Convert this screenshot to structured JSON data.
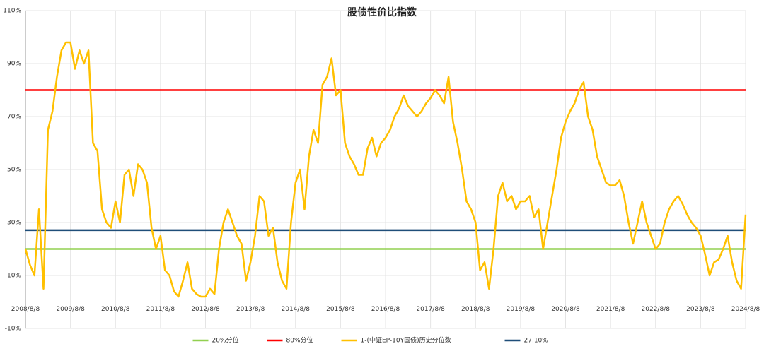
{
  "chart_data": {
    "type": "line",
    "title": "股债性价比指数",
    "x": [
      2008.6,
      2008.7,
      2008.8,
      2008.9,
      2009.0,
      2009.1,
      2009.2,
      2009.3,
      2009.4,
      2009.5,
      2009.6,
      2009.7,
      2009.8,
      2009.9,
      2010.0,
      2010.1,
      2010.2,
      2010.3,
      2010.4,
      2010.5,
      2010.6,
      2010.7,
      2010.8,
      2010.9,
      2011.0,
      2011.1,
      2011.2,
      2011.3,
      2011.4,
      2011.5,
      2011.6,
      2011.7,
      2011.8,
      2011.9,
      2012.0,
      2012.1,
      2012.2,
      2012.3,
      2012.4,
      2012.5,
      2012.6,
      2012.7,
      2012.8,
      2012.9,
      2013.0,
      2013.1,
      2013.2,
      2013.3,
      2013.4,
      2013.5,
      2013.6,
      2013.7,
      2013.8,
      2013.9,
      2014.0,
      2014.1,
      2014.2,
      2014.3,
      2014.4,
      2014.5,
      2014.6,
      2014.7,
      2014.8,
      2014.9,
      2015.0,
      2015.1,
      2015.2,
      2015.3,
      2015.4,
      2015.5,
      2015.6,
      2015.7,
      2015.8,
      2015.9,
      2016.0,
      2016.1,
      2016.2,
      2016.3,
      2016.4,
      2016.5,
      2016.6,
      2016.7,
      2016.8,
      2016.9,
      2017.0,
      2017.1,
      2017.2,
      2017.3,
      2017.4,
      2017.5,
      2017.6,
      2017.7,
      2017.8,
      2017.9,
      2018.0,
      2018.1,
      2018.2,
      2018.3,
      2018.4,
      2018.5,
      2018.6,
      2018.7,
      2018.8,
      2018.9,
      2019.0,
      2019.1,
      2019.2,
      2019.3,
      2019.4,
      2019.5,
      2019.6,
      2019.7,
      2019.8,
      2019.9,
      2020.0,
      2020.1,
      2020.2,
      2020.3,
      2020.4,
      2020.5,
      2020.6,
      2020.7,
      2020.8,
      2020.9,
      2021.0,
      2021.1,
      2021.2,
      2021.3,
      2021.4,
      2021.5,
      2021.6,
      2021.7,
      2021.8,
      2021.9,
      2022.0,
      2022.1,
      2022.2,
      2022.3,
      2022.4,
      2022.5,
      2022.6,
      2022.7,
      2022.8,
      2022.9,
      2023.0,
      2023.1,
      2023.2,
      2023.3,
      2023.4,
      2023.5,
      2023.6,
      2023.7,
      2023.8,
      2023.9,
      2024.0,
      2024.1,
      2024.2,
      2024.3,
      2024.4,
      2024.5,
      2024.6
    ],
    "series": [
      {
        "name": "20%分位",
        "color": "#92d050",
        "value": 20
      },
      {
        "name": "80%分位",
        "color": "#ff0000",
        "value": 80
      },
      {
        "name": "1-(中证EP-10Y国债)历史分位数",
        "color": "#ffc000",
        "values": [
          20,
          14,
          10,
          35,
          5,
          65,
          72,
          85,
          95,
          98,
          98,
          88,
          95,
          90,
          95,
          60,
          57,
          35,
          30,
          28,
          38,
          30,
          48,
          50,
          40,
          52,
          50,
          45,
          28,
          20,
          25,
          12,
          10,
          4,
          2,
          8,
          15,
          5,
          3,
          2,
          2,
          5,
          3,
          20,
          30,
          35,
          30,
          25,
          22,
          8,
          15,
          25,
          40,
          38,
          25,
          28,
          15,
          8,
          5,
          30,
          45,
          50,
          35,
          55,
          65,
          60,
          82,
          85,
          92,
          78,
          80,
          60,
          55,
          52,
          48,
          48,
          58,
          62,
          55,
          60,
          62,
          65,
          70,
          73,
          78,
          74,
          72,
          70,
          72,
          75,
          77,
          80,
          78,
          75,
          85,
          68,
          60,
          50,
          38,
          35,
          30,
          12,
          15,
          5,
          20,
          40,
          45,
          38,
          40,
          35,
          38,
          38,
          40,
          32,
          35,
          20,
          30,
          40,
          50,
          62,
          68,
          72,
          75,
          80,
          83,
          70,
          65,
          55,
          50,
          45,
          44,
          44,
          46,
          40,
          30,
          22,
          30,
          38,
          30,
          25,
          20,
          22,
          30,
          35,
          38,
          40,
          37,
          33,
          30,
          28,
          25,
          18,
          10,
          15,
          16,
          20,
          25,
          15,
          8,
          5,
          33
        ]
      },
      {
        "name": "27.10%",
        "color": "#1f4e79",
        "value": 27.1
      }
    ],
    "xlim": [
      2008.6,
      2024.6
    ],
    "xticks": [
      {
        "value": 2008.6,
        "label": "2008/8/8"
      },
      {
        "value": 2009.6,
        "label": "2009/8/8"
      },
      {
        "value": 2010.6,
        "label": "2010/8/8"
      },
      {
        "value": 2011.6,
        "label": "2011/8/8"
      },
      {
        "value": 2012.6,
        "label": "2012/8/8"
      },
      {
        "value": 2013.6,
        "label": "2013/8/8"
      },
      {
        "value": 2014.6,
        "label": "2014/8/8"
      },
      {
        "value": 2015.6,
        "label": "2015/8/8"
      },
      {
        "value": 2016.6,
        "label": "2016/8/8"
      },
      {
        "value": 2017.6,
        "label": "2017/8/8"
      },
      {
        "value": 2018.6,
        "label": "2018/8/8"
      },
      {
        "value": 2019.6,
        "label": "2019/8/8"
      },
      {
        "value": 2020.6,
        "label": "2020/8/8"
      },
      {
        "value": 2021.6,
        "label": "2021/8/8"
      },
      {
        "value": 2022.6,
        "label": "2022/8/8"
      },
      {
        "value": 2023.6,
        "label": "2023/8/8"
      },
      {
        "value": 2024.6,
        "label": "2024/8/8"
      }
    ],
    "ylim": [
      -10,
      110
    ],
    "yticks": [
      {
        "value": -10,
        "label": "-10%"
      },
      {
        "value": 10,
        "label": "10%"
      },
      {
        "value": 30,
        "label": "30%"
      },
      {
        "value": 50,
        "label": "50%"
      },
      {
        "value": 70,
        "label": "70%"
      },
      {
        "value": 90,
        "label": "90%"
      },
      {
        "value": 110,
        "label": "110%"
      }
    ],
    "grid": true
  }
}
